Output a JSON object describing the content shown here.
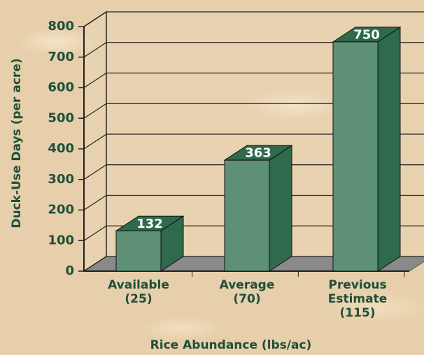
{
  "chart_data": {
    "type": "bar3d",
    "x_label": "Rice Abundance (lbs/ac)",
    "y_label": "Duck-Use Days (per acre)",
    "categories": [
      "Available (25)",
      "Average (70)",
      "Previous Estimate (115)"
    ],
    "values": [
      132,
      363,
      750
    ],
    "color": "#5e9076",
    "side_color": "#2f6a4c",
    "ylim": [
      0,
      800
    ],
    "yticks": [
      0,
      100,
      200,
      300,
      400,
      500,
      600,
      700,
      800
    ],
    "grid": true
  }
}
